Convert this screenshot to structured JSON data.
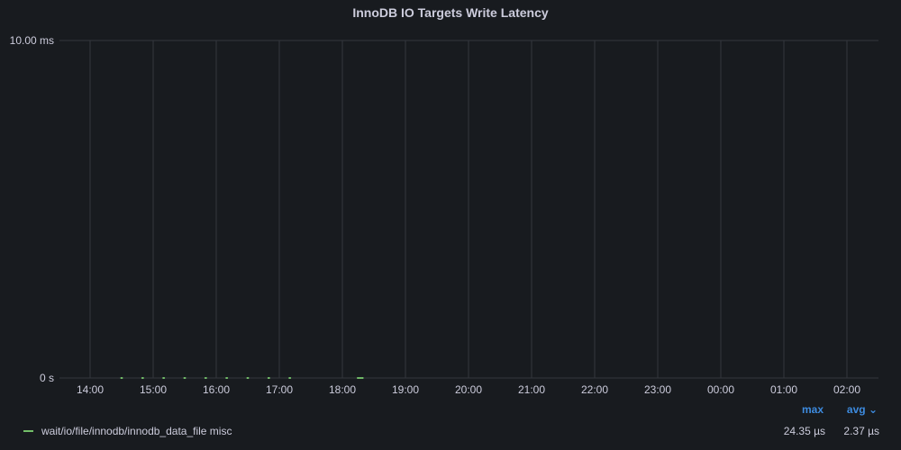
{
  "panel": {
    "title": "InnoDB IO Targets Write Latency"
  },
  "chart_data": {
    "type": "line",
    "title": "InnoDB IO Targets Write Latency",
    "xlabel": "",
    "ylabel": "",
    "x_ticks": [
      "14:00",
      "15:00",
      "16:00",
      "17:00",
      "18:00",
      "19:00",
      "20:00",
      "21:00",
      "22:00",
      "23:00",
      "00:00",
      "01:00",
      "02:00"
    ],
    "y_ticks": [
      "0 s",
      "10.00 ms"
    ],
    "ylim_ms": [
      0,
      10
    ],
    "grid": true,
    "legend_position": "bottom",
    "series": [
      {
        "name": "wait/io/file/innodb/innodb_data_file misc",
        "color": "#73bf69",
        "x": [
          "14:30",
          "14:50",
          "15:10",
          "15:30",
          "15:50",
          "16:10",
          "16:30",
          "16:50",
          "17:10",
          "18:15",
          "18:17",
          "18:19"
        ],
        "values_us": [
          3,
          3,
          2,
          3,
          2,
          24.35,
          3,
          2,
          3,
          2,
          3,
          2
        ]
      }
    ]
  },
  "legend": {
    "columns": [
      "max",
      "avg"
    ],
    "rows": [
      {
        "name": "wait/io/file/innodb/innodb_data_file misc",
        "max": "24.35 µs",
        "avg": "2.37 µs"
      }
    ]
  }
}
